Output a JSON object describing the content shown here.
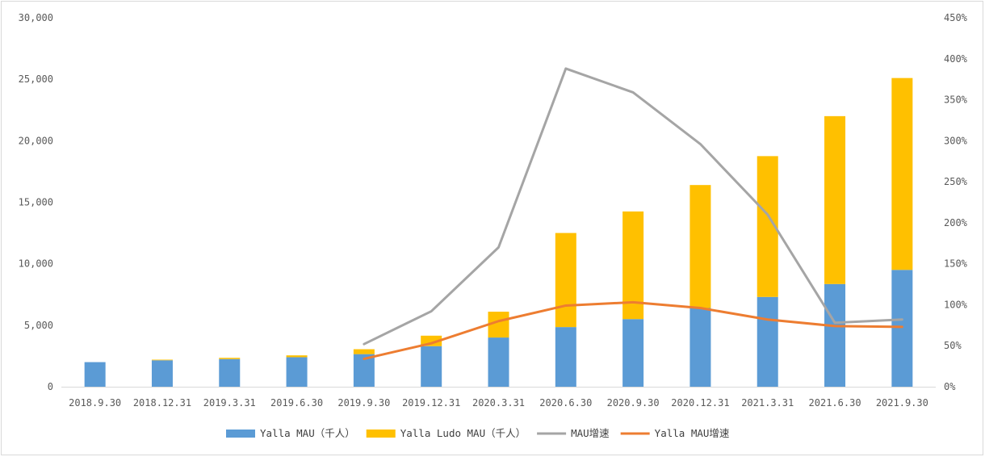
{
  "chart_data": {
    "type": "bar",
    "stacked": true,
    "categories": [
      "2018.9.30",
      "2018.12.31",
      "2019.3.31",
      "2019.6.30",
      "2019.9.30",
      "2019.12.31",
      "2020.3.31",
      "2020.6.30",
      "2020.9.30",
      "2020.12.31",
      "2021.3.31",
      "2021.6.30",
      "2021.9.30"
    ],
    "series": [
      {
        "name": "Yalla MAU（千人）",
        "kind": "bar",
        "axis": "left",
        "color": "#5b9bd5",
        "values": [
          2000,
          2150,
          2250,
          2400,
          2650,
          3300,
          4000,
          4850,
          5500,
          6400,
          7300,
          8350,
          9500
        ]
      },
      {
        "name": "Yalla Ludo MAU（千人）",
        "kind": "bar",
        "axis": "left",
        "color": "#ffc000",
        "values": [
          0,
          50,
          100,
          150,
          400,
          850,
          2100,
          7650,
          8750,
          10000,
          11450,
          13650,
          15600
        ]
      },
      {
        "name": "MAU增速",
        "kind": "line",
        "axis": "right",
        "color": "#a5a5a5",
        "values": [
          null,
          null,
          null,
          null,
          0.52,
          0.92,
          1.7,
          3.88,
          3.59,
          2.96,
          2.1,
          0.78,
          0.82
        ]
      },
      {
        "name": "Yalla MAU增速",
        "kind": "line",
        "axis": "right",
        "color": "#ed7d31",
        "values": [
          null,
          null,
          null,
          null,
          0.34,
          0.53,
          0.8,
          0.99,
          1.03,
          0.96,
          0.82,
          0.74,
          0.73
        ]
      }
    ],
    "yleft": {
      "min": 0,
      "max": 30000,
      "ticks": [
        "0",
        "5,000",
        "10,000",
        "15,000",
        "20,000",
        "25,000",
        "30,000"
      ]
    },
    "yright": {
      "min": 0,
      "max": 4.5,
      "ticks": [
        "0%",
        "50%",
        "100%",
        "150%",
        "200%",
        "250%",
        "300%",
        "350%",
        "400%",
        "450%"
      ]
    },
    "grid": false,
    "legend_position": "bottom"
  }
}
